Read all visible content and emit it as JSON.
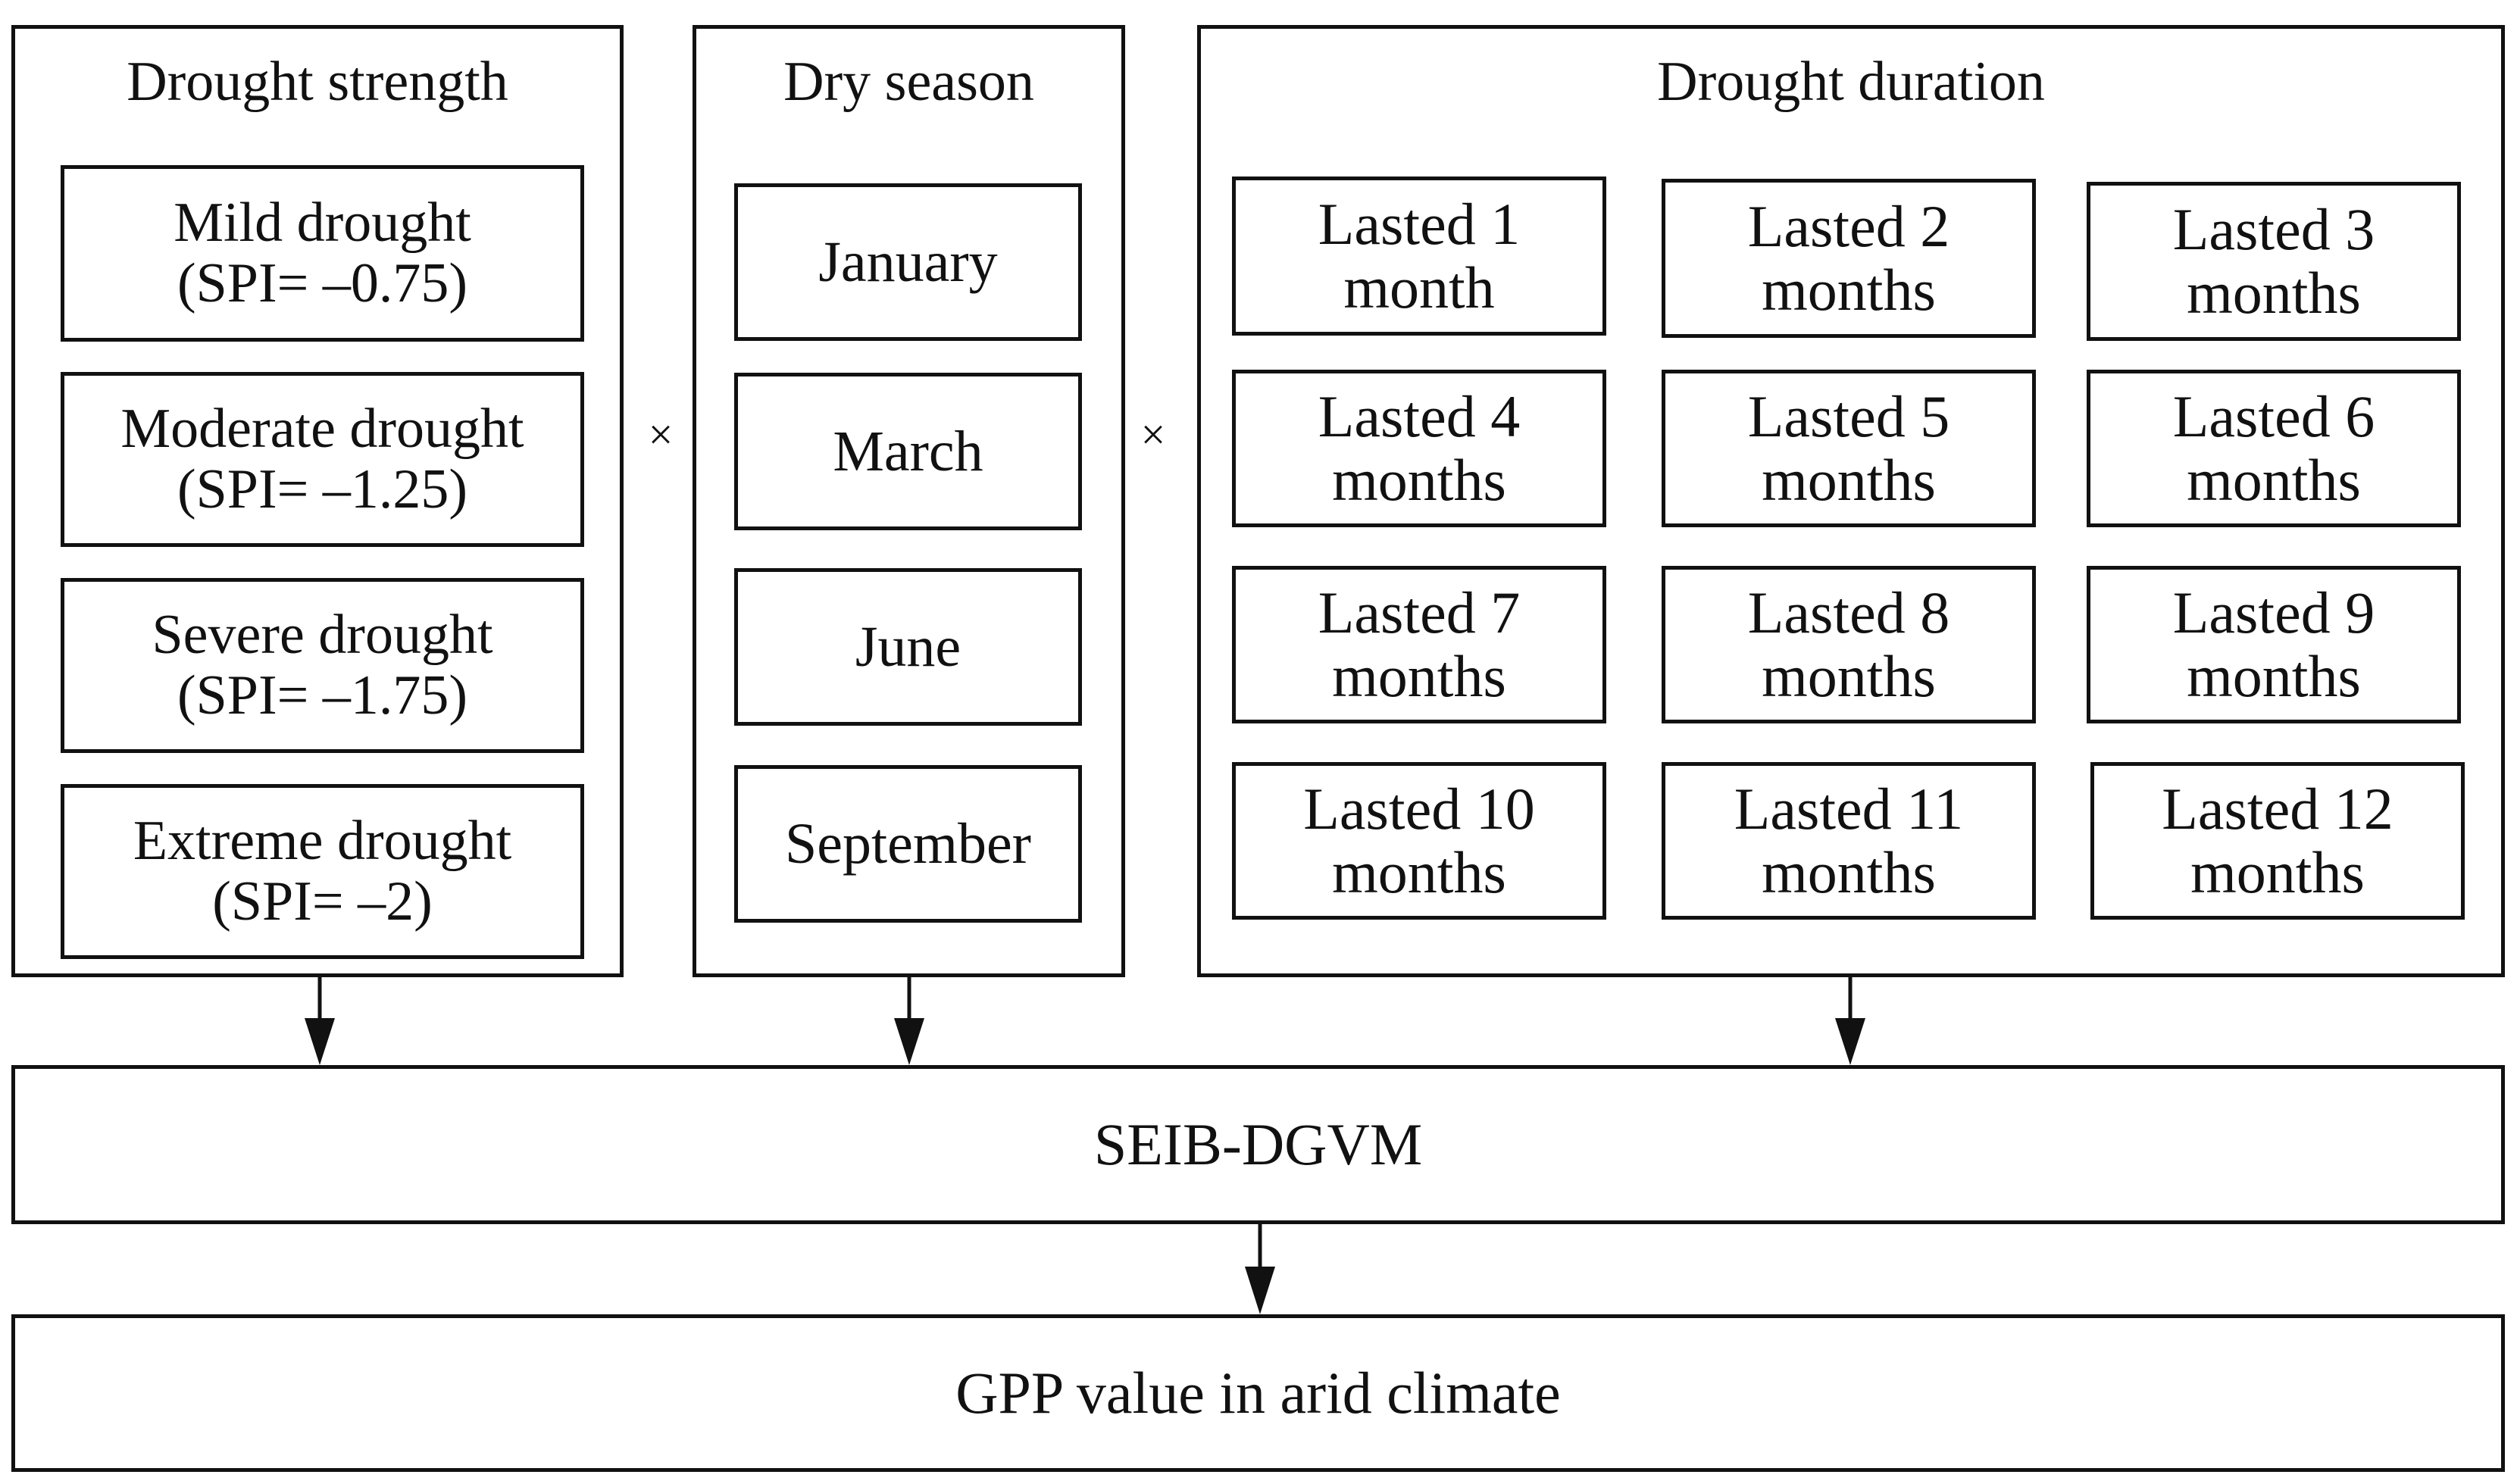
{
  "groups": {
    "strength": {
      "title": "Drought strength",
      "items": [
        "Mild drought\n(SPI= –0.75)",
        "Moderate drought\n(SPI= –1.25)",
        "Severe drought\n(SPI= –1.75)",
        "Extreme drought\n(SPI= –2)"
      ]
    },
    "season": {
      "title": "Dry season",
      "items": [
        "January",
        "March",
        "June",
        "September"
      ]
    },
    "duration": {
      "title": "Drought duration",
      "items": [
        "Lasted 1\nmonth",
        "Lasted 2\nmonths",
        "Lasted 3\nmonths",
        "Lasted 4\nmonths",
        "Lasted 5\nmonths",
        "Lasted 6\nmonths",
        "Lasted 7\nmonths",
        "Lasted 8\nmonths",
        "Lasted 9\nmonths",
        "Lasted 10\nmonths",
        "Lasted 11\nmonths",
        "Lasted 12\nmonths"
      ]
    }
  },
  "operators": {
    "times_1": "×",
    "times_2": "×"
  },
  "model": {
    "label": "SEIB-DGVM"
  },
  "output": {
    "label": "GPP value in arid climate"
  },
  "colors": {
    "line": "#111111",
    "background": "#ffffff"
  }
}
